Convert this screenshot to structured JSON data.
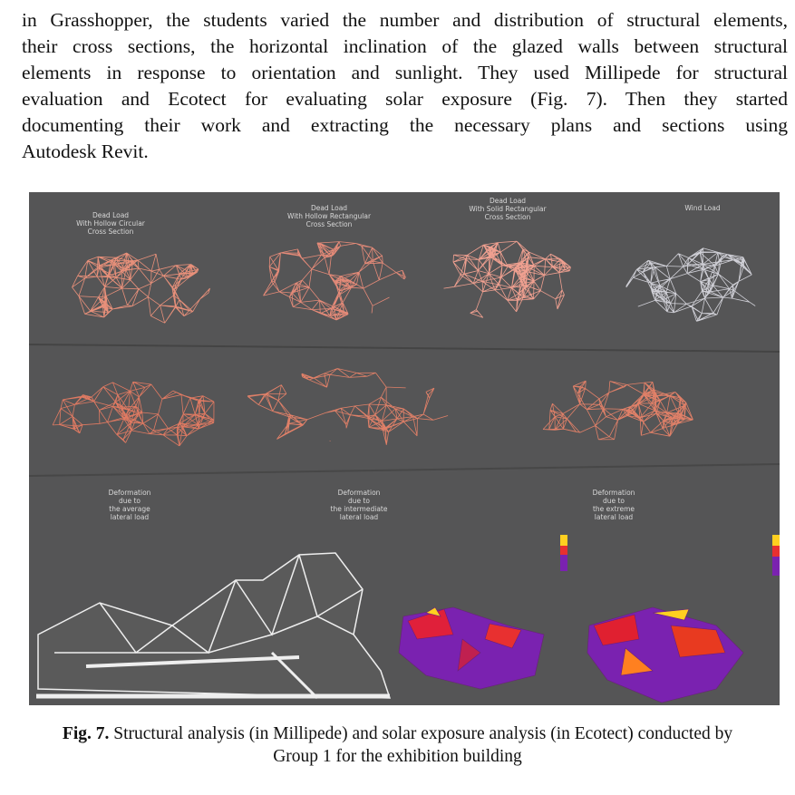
{
  "paragraph": {
    "lines": [
      "in Grasshopper, the students varied the number and distribution of structural elements,",
      "their cross sections, the horizontal inclination of the glazed walls between structural",
      "elements in response to orientation and sunlight. They used Millipede for structural",
      "evaluation and Ecotect for evaluating solar exposure (Fig. 7). Then they started",
      "documenting their work and extracting the necessary plans and sections using",
      "Autodesk Revit."
    ]
  },
  "figure": {
    "labels": [
      {
        "lines": [
          "Dead Load",
          "With Hollow Circular",
          "Cross Section"
        ]
      },
      {
        "lines": [
          "Dead Load",
          "With Hollow Rectangular",
          "Cross Section"
        ]
      },
      {
        "lines": [
          "Dead Load",
          "With Solid Rectangular",
          "Cross Section"
        ]
      },
      {
        "lines": [
          "Wind Load"
        ]
      },
      {
        "lines": [
          "Deformation",
          "due to",
          "the average",
          "lateral load"
        ]
      },
      {
        "lines": [
          "Deformation",
          "due to",
          "the intermediate",
          "lateral load"
        ]
      },
      {
        "lines": [
          "Deformation",
          "due to",
          "the extreme",
          "lateral load"
        ]
      }
    ]
  },
  "caption": {
    "label": "Fig. 7.",
    "lines": [
      "Structural analysis (in Millipede) and solar exposure analysis (in Ecotect) conducted by",
      "Group 1 for the exhibition building"
    ]
  }
}
